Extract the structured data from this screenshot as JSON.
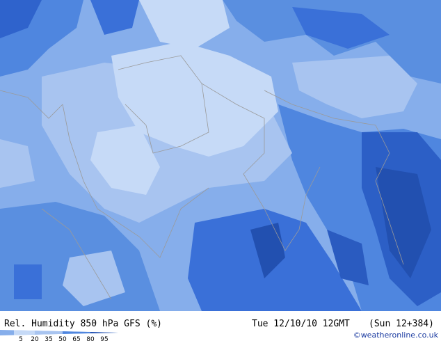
{
  "header": {
    "title": "Rel. Humidity 850 hPa GFS (%)",
    "valid_time": "Tue 12/10/10 12GMT",
    "forecast": "(Sun 12+384)"
  },
  "legend": {
    "labels": [
      "5",
      "20",
      "35",
      "50",
      "65",
      "80",
      "95"
    ]
  },
  "credit": "©weatheronline.co.uk"
}
